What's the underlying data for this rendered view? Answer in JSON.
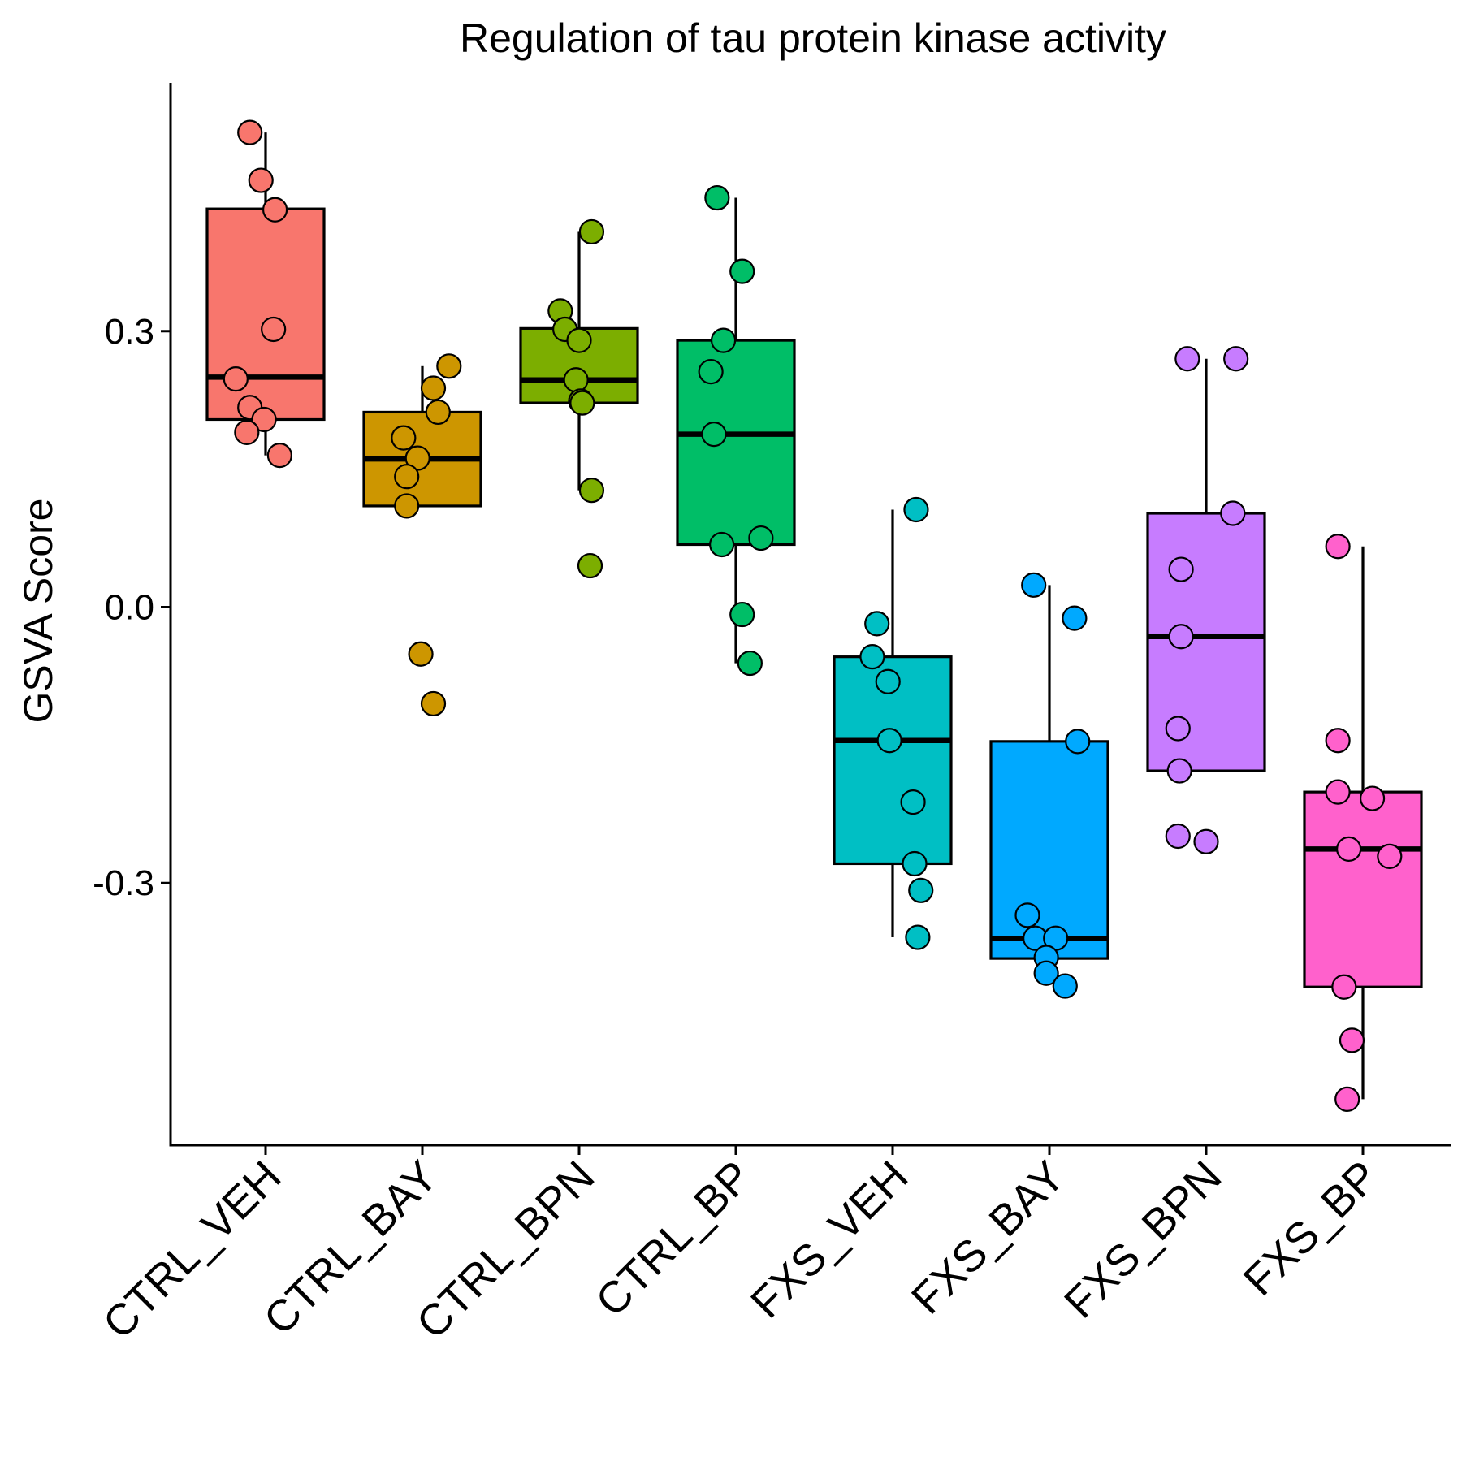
{
  "chart_data": {
    "type": "box",
    "title": "Regulation of tau protein kinase activity",
    "xlabel": "",
    "ylabel": "GSVA Score",
    "ylim": [
      -0.585,
      0.57
    ],
    "yticks": [
      0.3,
      0.0,
      -0.3
    ],
    "ytick_labels": [
      "0.3",
      "0.0",
      "-0.3"
    ],
    "grid": false,
    "legend": "none",
    "categories": [
      "CTRL_VEH",
      "CTRL_BAY",
      "CTRL_BPN",
      "CTRL_BP",
      "FXS_VEH",
      "FXS_BAY",
      "FXS_BPN",
      "FXS_BP"
    ],
    "colors": [
      "#F8766D",
      "#CD9600",
      "#7CAE00",
      "#00BE67",
      "#00BFC4",
      "#00A9FF",
      "#C77CFF",
      "#FF61CC"
    ],
    "boxes": [
      {
        "group": "CTRL_VEH",
        "q1": 0.204,
        "median": 0.25,
        "q3": 0.433,
        "whisker_low": 0.165,
        "whisker_high": 0.516
      },
      {
        "group": "CTRL_BAY",
        "q1": 0.11,
        "median": 0.161,
        "q3": 0.212,
        "whisker_low": 0.11,
        "whisker_high": 0.262
      },
      {
        "group": "CTRL_BPN",
        "q1": 0.222,
        "median": 0.247,
        "q3": 0.303,
        "whisker_low": 0.127,
        "whisker_high": 0.408
      },
      {
        "group": "CTRL_BP",
        "q1": 0.068,
        "median": 0.188,
        "q3": 0.29,
        "whisker_low": -0.061,
        "whisker_high": 0.445
      },
      {
        "group": "FXS_VEH",
        "q1": -0.279,
        "median": -0.145,
        "q3": -0.054,
        "whisker_low": -0.359,
        "whisker_high": 0.106
      },
      {
        "group": "FXS_BAY",
        "q1": -0.382,
        "median": -0.36,
        "q3": -0.146,
        "whisker_low": -0.382,
        "whisker_high": 0.024
      },
      {
        "group": "FXS_BPN",
        "q1": -0.178,
        "median": -0.032,
        "q3": 0.102,
        "whisker_low": -0.178,
        "whisker_high": 0.27
      },
      {
        "group": "FXS_BP",
        "q1": -0.413,
        "median": -0.263,
        "q3": -0.201,
        "whisker_low": -0.535,
        "whisker_high": 0.066
      }
    ],
    "points": [
      {
        "group": "CTRL_VEH",
        "values": [
          0.516,
          0.464,
          0.432,
          0.302,
          0.248,
          0.217,
          0.204,
          0.19,
          0.165
        ],
        "jitter": [
          -0.1,
          -0.03,
          0.06,
          0.05,
          -0.19,
          -0.1,
          -0.01,
          -0.12,
          0.09
        ]
      },
      {
        "group": "CTRL_BAY",
        "values": [
          0.262,
          0.238,
          0.212,
          0.184,
          0.162,
          0.142,
          0.11,
          -0.051,
          -0.105
        ],
        "jitter": [
          0.17,
          0.07,
          0.1,
          -0.12,
          -0.03,
          -0.1,
          -0.1,
          -0.01,
          0.07
        ]
      },
      {
        "group": "CTRL_BPN",
        "values": [
          0.408,
          0.322,
          0.302,
          0.29,
          0.247,
          0.224,
          0.222,
          0.127,
          0.045
        ],
        "jitter": [
          0.08,
          -0.12,
          -0.09,
          0.0,
          -0.02,
          0.01,
          0.02,
          0.08,
          0.07
        ]
      },
      {
        "group": "CTRL_BP",
        "values": [
          0.445,
          0.365,
          0.29,
          0.256,
          0.188,
          0.075,
          0.068,
          -0.008,
          -0.061
        ],
        "jitter": [
          -0.12,
          0.04,
          -0.08,
          -0.16,
          -0.14,
          0.16,
          -0.09,
          0.04,
          0.09
        ]
      },
      {
        "group": "FXS_VEH",
        "values": [
          0.106,
          -0.018,
          -0.054,
          -0.081,
          -0.145,
          -0.212,
          -0.279,
          -0.308,
          -0.359
        ],
        "jitter": [
          0.15,
          -0.1,
          -0.13,
          -0.03,
          -0.02,
          0.13,
          0.14,
          0.18,
          0.16
        ]
      },
      {
        "group": "FXS_BAY",
        "values": [
          0.024,
          -0.012,
          -0.146,
          -0.335,
          -0.36,
          -0.36,
          -0.381,
          -0.398,
          -0.412
        ],
        "jitter": [
          -0.1,
          0.16,
          0.18,
          -0.14,
          -0.09,
          0.04,
          -0.02,
          -0.02,
          0.1
        ]
      },
      {
        "group": "FXS_BPN",
        "values": [
          0.27,
          0.27,
          0.102,
          0.041,
          -0.032,
          -0.132,
          -0.178,
          -0.249,
          -0.255
        ],
        "jitter": [
          -0.12,
          0.19,
          0.17,
          -0.16,
          -0.16,
          -0.18,
          -0.17,
          -0.18,
          0.0
        ]
      },
      {
        "group": "FXS_BP",
        "values": [
          0.066,
          -0.145,
          -0.201,
          -0.208,
          -0.263,
          -0.271,
          -0.413,
          -0.471,
          -0.535
        ],
        "jitter": [
          -0.16,
          -0.16,
          -0.16,
          0.06,
          -0.09,
          0.17,
          -0.12,
          -0.07,
          -0.1
        ]
      }
    ]
  }
}
